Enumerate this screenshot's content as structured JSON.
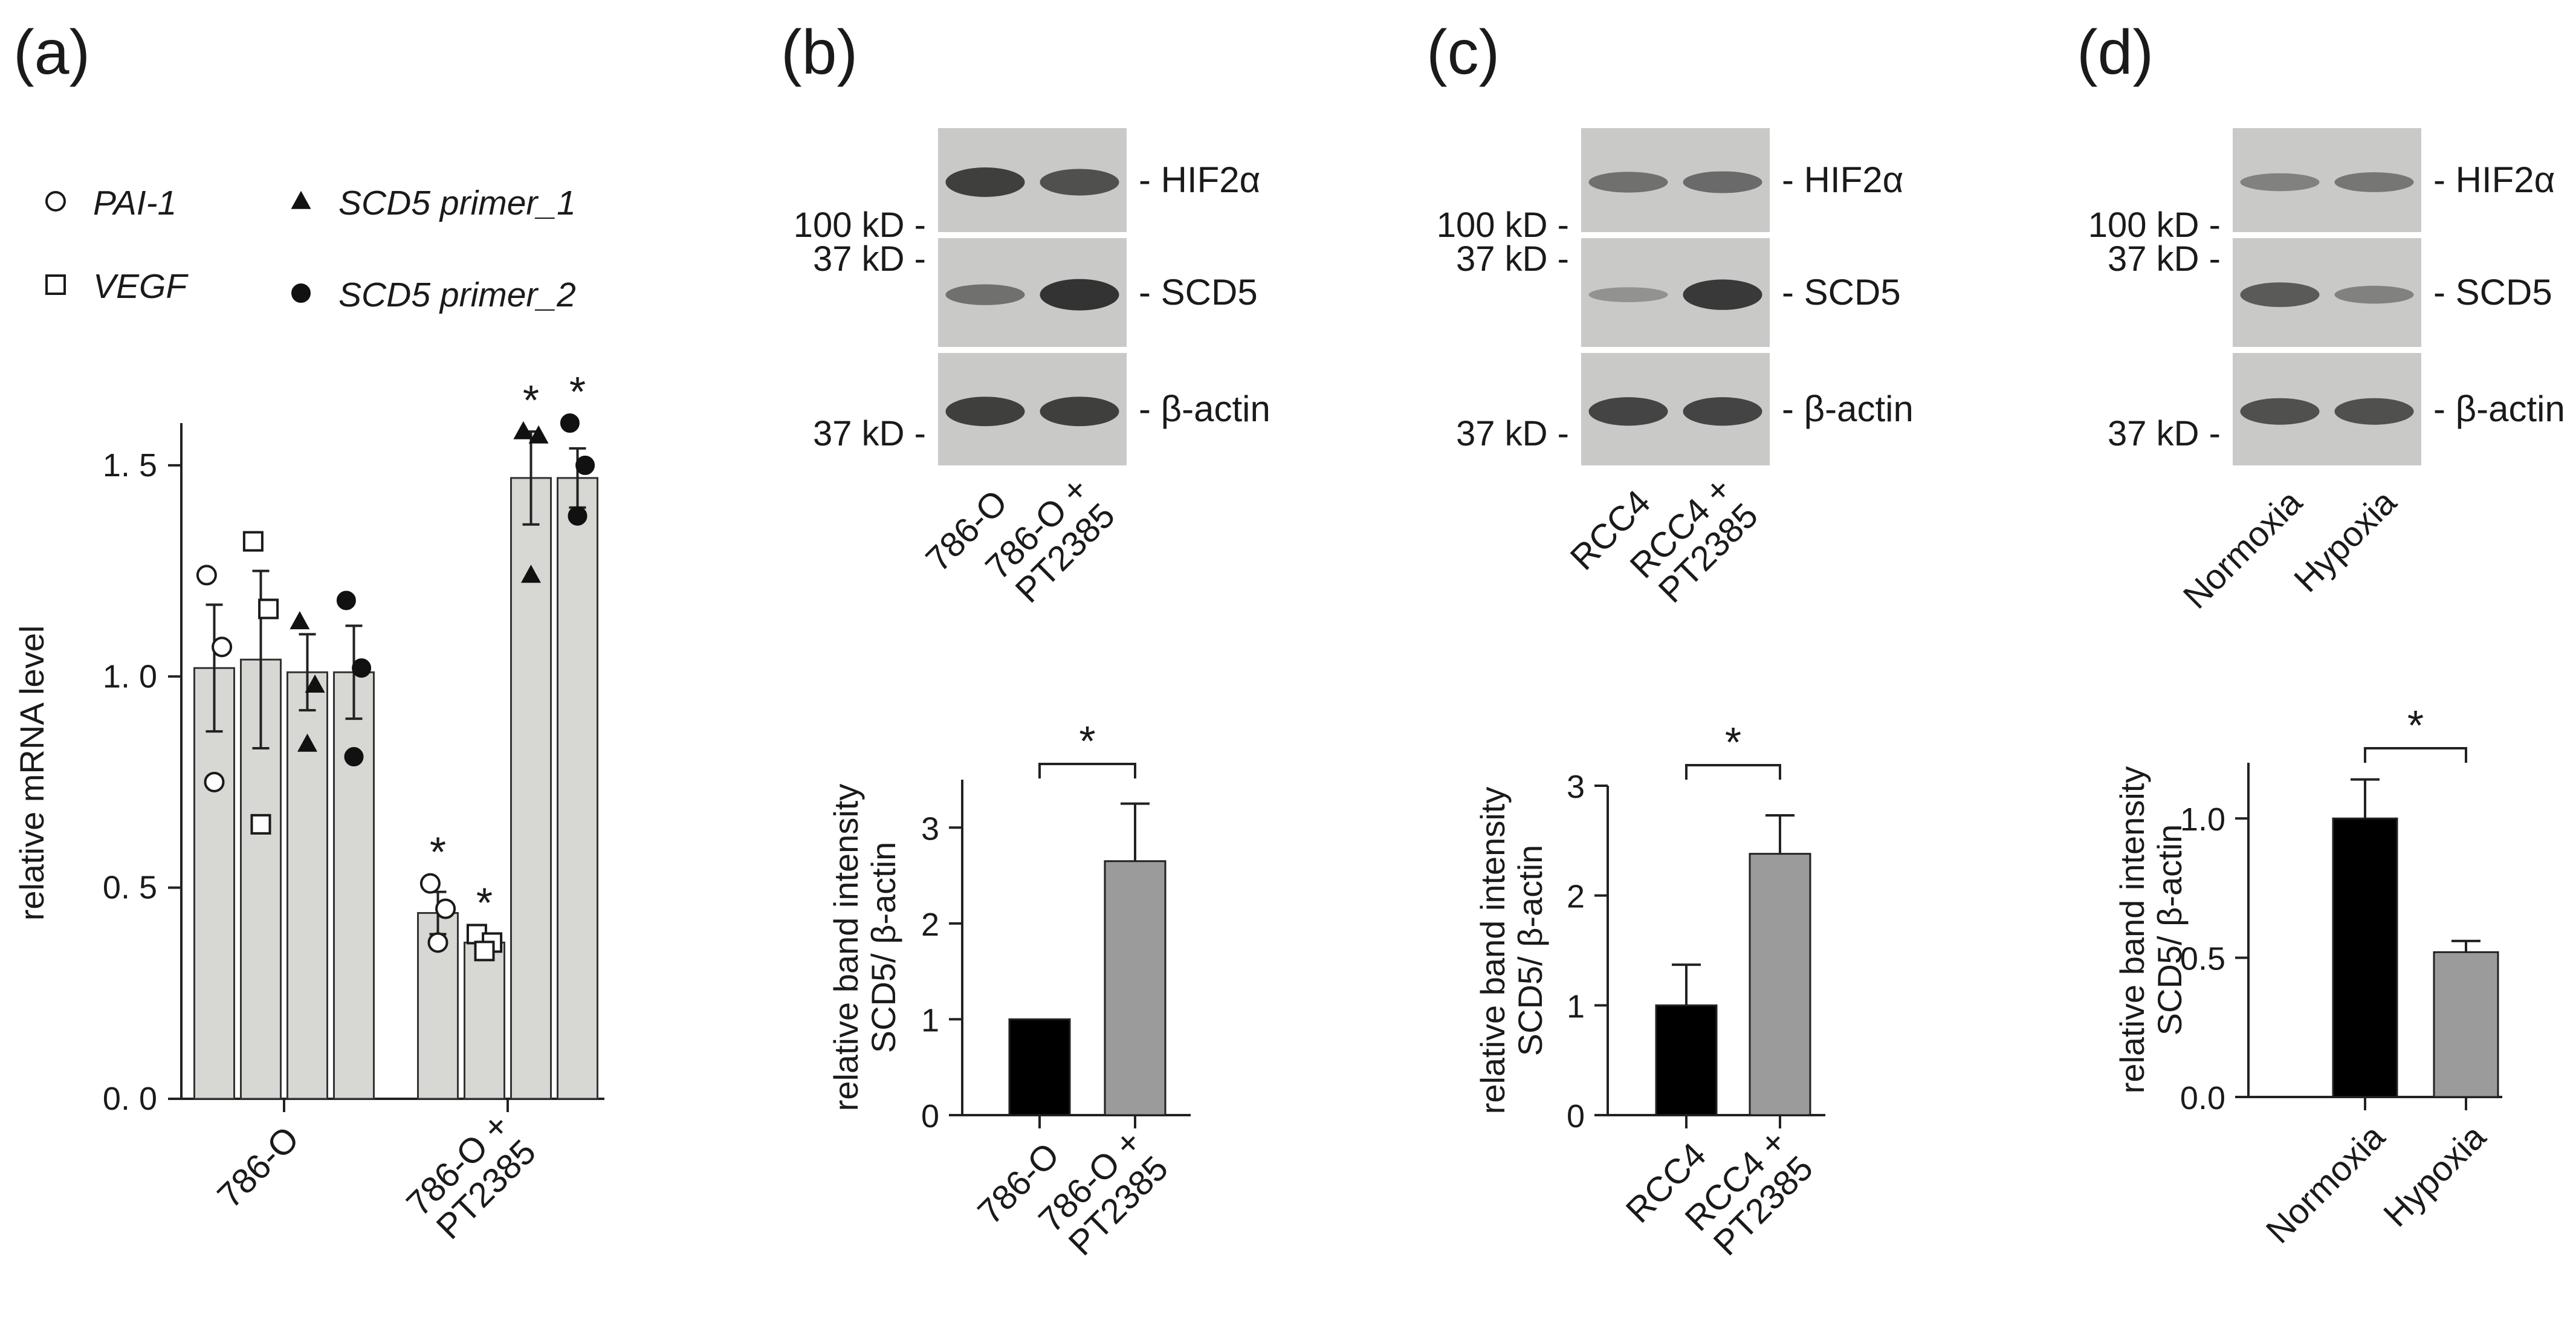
{
  "panel_labels": [
    "(a)",
    "(b)",
    "(c)",
    "(d)"
  ],
  "colors": {
    "bar_light": "#d7d7d4",
    "bar_black": "#000000",
    "bar_gray": "#9b9b9b",
    "blot_bg": "#c9c9c7",
    "band": "#2b2b2b"
  },
  "legend": [
    {
      "marker": "circle-open",
      "label": "PAI-1"
    },
    {
      "marker": "square-open",
      "label": "VEGF"
    },
    {
      "marker": "triangle-filled",
      "label": "SCD5 primer_1"
    },
    {
      "marker": "circle-filled",
      "label": "SCD5 primer_2"
    }
  ],
  "blots": [
    {
      "panel": "(b)",
      "rows": [
        "- HIF2α",
        "- SCD5",
        "- β-actin"
      ],
      "kd": [
        "100 kD -",
        "37 kD -",
        "37 kD -"
      ],
      "lanes": [
        "786-O",
        "786-O +\nPT2385"
      ],
      "band_strength": [
        [
          0.9,
          0.75
        ],
        [
          0.45,
          1.0
        ],
        [
          0.9,
          0.9
        ]
      ]
    },
    {
      "panel": "(c)",
      "rows": [
        "- HIF2α",
        "- SCD5",
        "- β-actin"
      ],
      "kd": [
        "100 kD -",
        "37 kD -",
        "37 kD -"
      ],
      "lanes": [
        "RCC4",
        "RCC4 +\nPT2385"
      ],
      "band_strength": [
        [
          0.45,
          0.5
        ],
        [
          0.15,
          0.95
        ],
        [
          0.85,
          0.85
        ]
      ]
    },
    {
      "panel": "(d)",
      "rows": [
        "- HIF2α",
        "- SCD5",
        "- β-actin"
      ],
      "kd": [
        "100 kD -",
        "37 kD -",
        "37 kD -"
      ],
      "lanes": [
        "Normoxia",
        "Hypoxia"
      ],
      "band_strength": [
        [
          0.3,
          0.4
        ],
        [
          0.65,
          0.3
        ],
        [
          0.75,
          0.75
        ]
      ]
    }
  ],
  "chart_data": [
    {
      "panel": "(a)",
      "type": "bar",
      "ylabel": "relative mRNA level",
      "ylim": [
        0,
        1.6
      ],
      "yticks": [
        0.0,
        0.5,
        1.0,
        1.5
      ],
      "ytick_labels": [
        "0. 0",
        "0. 5",
        "1. 0",
        "1. 5"
      ],
      "categories": [
        "786-O",
        "786-O +\nPT2385"
      ],
      "series": [
        {
          "name": "PAI-1",
          "marker": "circle-open",
          "values": [
            1.02,
            0.44
          ],
          "errors": [
            0.15,
            0.05
          ],
          "points": [
            [
              1.24,
              1.07,
              0.75
            ],
            [
              0.51,
              0.45,
              0.37
            ]
          ],
          "significant": [
            false,
            true
          ]
        },
        {
          "name": "VEGF",
          "marker": "square-open",
          "values": [
            1.04,
            0.37
          ],
          "errors": [
            0.21,
            0.02
          ],
          "points": [
            [
              1.32,
              1.16,
              0.65
            ],
            [
              0.39,
              0.37,
              0.35
            ]
          ],
          "significant": [
            false,
            true
          ]
        },
        {
          "name": "SCD5 primer_1",
          "marker": "triangle-filled",
          "values": [
            1.01,
            1.47
          ],
          "errors": [
            0.09,
            0.11
          ],
          "points": [
            [
              1.13,
              0.98,
              0.84
            ],
            [
              1.58,
              1.57,
              1.24
            ]
          ],
          "significant": [
            false,
            true
          ]
        },
        {
          "name": "SCD5 primer_2",
          "marker": "circle-filled",
          "values": [
            1.01,
            1.47
          ],
          "errors": [
            0.11,
            0.07
          ],
          "points": [
            [
              1.18,
              1.02,
              0.81
            ],
            [
              1.6,
              1.5,
              1.38
            ]
          ],
          "significant": [
            false,
            true
          ]
        }
      ],
      "significance_mark": "*"
    },
    {
      "panel": "(b)",
      "type": "bar",
      "ylabel": "relative band intensity\nSCD5/ β-actin",
      "ylim": [
        0,
        3.5
      ],
      "yticks": [
        0,
        1,
        2,
        3
      ],
      "ytick_labels": [
        "0",
        "1",
        "2",
        "3"
      ],
      "categories": [
        "786-O",
        "786-O +\nPT2385"
      ],
      "values": [
        1.0,
        2.65
      ],
      "errors": [
        0,
        0.6
      ],
      "bar_colors": [
        "#000000",
        "#9b9b9b"
      ],
      "significance_mark": "*"
    },
    {
      "panel": "(c)",
      "type": "bar",
      "ylabel": "relative band intensity\nSCD5/ β-actin",
      "ylim": [
        0,
        3
      ],
      "yticks": [
        0,
        1,
        2,
        3
      ],
      "ytick_labels": [
        "0",
        "1",
        "2",
        "3"
      ],
      "categories": [
        "RCC4",
        "RCC4 +\nPT2385"
      ],
      "values": [
        1.0,
        2.38
      ],
      "errors": [
        0.37,
        0.35
      ],
      "bar_colors": [
        "#000000",
        "#9b9b9b"
      ],
      "significance_mark": "*"
    },
    {
      "panel": "(d)",
      "type": "bar",
      "ylabel": "relative band intensity\nSCD5/ β-actin",
      "ylim": [
        0,
        1.2
      ],
      "yticks": [
        0.0,
        0.5,
        1.0
      ],
      "ytick_labels": [
        "0.0",
        "0.5",
        "1.0"
      ],
      "categories": [
        "Normoxia",
        "Hypoxia"
      ],
      "values": [
        1.0,
        0.52
      ],
      "errors": [
        0.14,
        0.04
      ],
      "bar_colors": [
        "#000000",
        "#9b9b9b"
      ],
      "significance_mark": "*"
    }
  ]
}
